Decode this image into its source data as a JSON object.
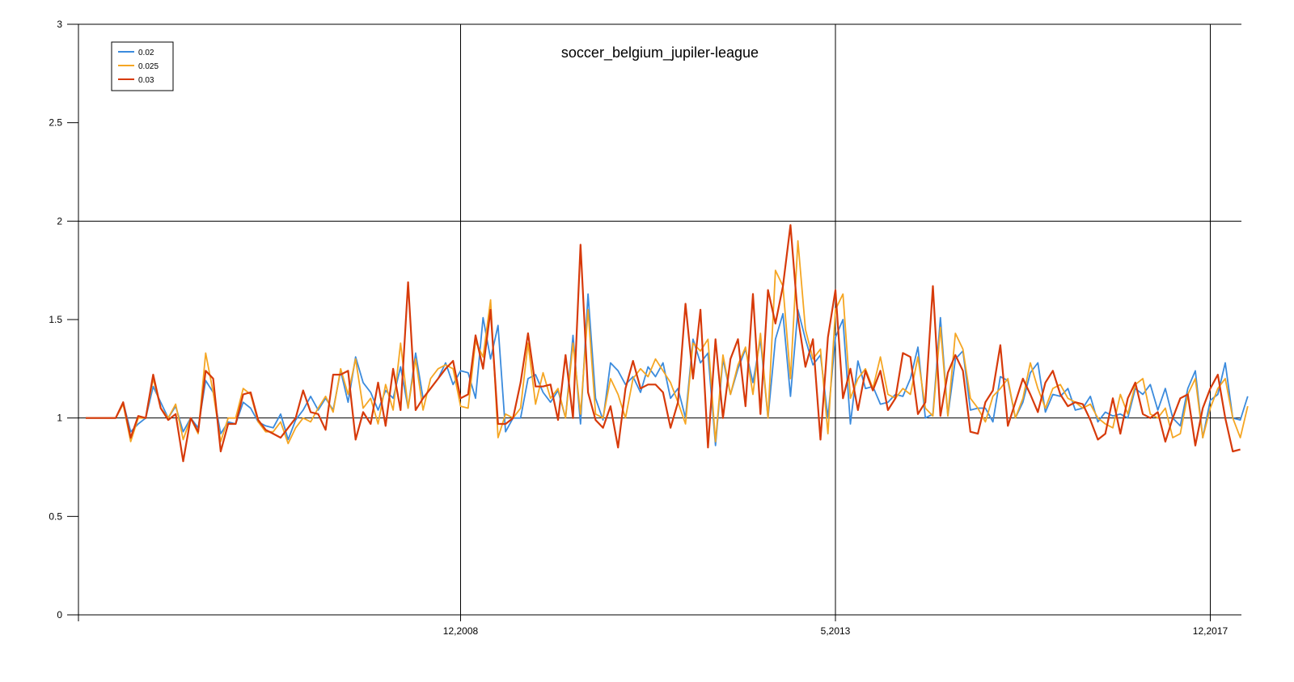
{
  "chart_data": {
    "type": "line",
    "title": "soccer_belgium_jupiler-league",
    "xlabel": "",
    "ylabel": "",
    "ylim": [
      0,
      3
    ],
    "xlim": [
      0,
      160
    ],
    "yticks": [
      0,
      0.5,
      1,
      1.5,
      2,
      2.5,
      3
    ],
    "ytick_labels": [
      "0",
      "0.5",
      "1",
      "1.5",
      "2",
      "2.5",
      "3"
    ],
    "xticks": [
      {
        "x": 50,
        "label": "12,2008"
      },
      {
        "x": 100,
        "label": "5,2013"
      },
      {
        "x": 150,
        "label": "12,2017"
      }
    ],
    "grid": {
      "horizontal": [
        1,
        2,
        3
      ],
      "vertical": [
        50,
        100,
        150
      ]
    },
    "legend_position": "top-left",
    "series": [
      {
        "name": "0.02",
        "color": "#3b8bdd",
        "values": [
          1.0,
          1.0,
          1.0,
          1.0,
          1.0,
          1.08,
          0.93,
          0.97,
          1.0,
          1.16,
          1.08,
          1.0,
          1.06,
          0.93,
          1.0,
          0.95,
          1.19,
          1.13,
          0.92,
          0.98,
          0.97,
          1.08,
          1.05,
          0.98,
          0.96,
          0.95,
          1.02,
          0.89,
          0.99,
          1.04,
          1.11,
          1.04,
          1.1,
          1.04,
          1.24,
          1.08,
          1.31,
          1.18,
          1.13,
          1.04,
          1.14,
          1.1,
          1.26,
          1.05,
          1.33,
          1.1,
          1.15,
          1.2,
          1.28,
          1.17,
          1.24,
          1.23,
          1.1,
          1.51,
          1.3,
          1.47,
          0.93,
          1.0,
          1.0,
          1.2,
          1.22,
          1.13,
          1.08,
          1.14,
          1.0,
          1.42,
          0.97,
          1.63,
          1.1,
          0.99,
          1.28,
          1.24,
          1.17,
          1.21,
          1.13,
          1.26,
          1.21,
          1.28,
          1.1,
          1.15,
          1.0,
          1.4,
          1.28,
          1.33,
          0.86,
          1.3,
          1.12,
          1.25,
          1.35,
          1.18,
          1.4,
          1.0,
          1.4,
          1.53,
          1.11,
          1.55,
          1.4,
          1.27,
          1.32,
          1.0,
          1.41,
          1.5,
          0.97,
          1.29,
          1.15,
          1.16,
          1.07,
          1.08,
          1.12,
          1.11,
          1.2,
          1.36,
          1.0,
          1.02,
          1.51,
          1.01,
          1.3,
          1.34,
          1.04,
          1.05,
          1.05,
          0.98,
          1.21,
          1.19,
          1.0,
          1.08,
          1.23,
          1.28,
          1.03,
          1.12,
          1.11,
          1.15,
          1.04,
          1.05,
          1.11,
          0.98,
          1.03,
          1.01,
          1.02,
          1.0,
          1.15,
          1.12,
          1.17,
          1.04,
          1.15,
          1.0,
          0.96,
          1.15,
          1.24,
          0.9,
          1.09,
          1.12,
          1.28,
          1.0,
          0.99,
          1.11
        ]
      },
      {
        "name": "0.025",
        "color": "#f5a623",
        "values": [
          1.0,
          1.0,
          1.0,
          1.0,
          1.0,
          1.07,
          0.88,
          1.0,
          1.0,
          1.2,
          1.05,
          1.0,
          1.07,
          0.89,
          1.0,
          0.92,
          1.33,
          1.13,
          0.88,
          1.0,
          1.0,
          1.15,
          1.12,
          0.98,
          0.93,
          0.93,
          0.98,
          0.87,
          0.95,
          1.0,
          0.98,
          1.05,
          1.11,
          1.03,
          1.25,
          1.12,
          1.3,
          1.05,
          1.1,
          0.97,
          1.17,
          1.04,
          1.38,
          1.05,
          1.3,
          1.04,
          1.2,
          1.25,
          1.27,
          1.25,
          1.06,
          1.05,
          1.39,
          1.31,
          1.6,
          0.9,
          1.02,
          1.0,
          1.05,
          1.38,
          1.07,
          1.23,
          1.1,
          1.15,
          1.0,
          1.38,
          1.02,
          1.55,
          1.02,
          1.0,
          1.2,
          1.12,
          1.0,
          1.2,
          1.25,
          1.21,
          1.3,
          1.24,
          1.18,
          1.08,
          0.97,
          1.38,
          1.34,
          1.4,
          0.88,
          1.32,
          1.12,
          1.27,
          1.36,
          1.12,
          1.43,
          1.0,
          1.75,
          1.67,
          1.2,
          1.9,
          1.45,
          1.3,
          1.35,
          0.92,
          1.55,
          1.63,
          1.1,
          1.2,
          1.25,
          1.15,
          1.31,
          1.12,
          1.1,
          1.15,
          1.12,
          1.31,
          1.05,
          1.01,
          1.46,
          1.01,
          1.43,
          1.35,
          1.1,
          1.05,
          0.98,
          1.11,
          1.15,
          1.2,
          1.0,
          1.1,
          1.28,
          1.15,
          1.05,
          1.15,
          1.17,
          1.1,
          1.08,
          1.05,
          1.07,
          1.0,
          0.97,
          0.95,
          1.12,
          1.02,
          1.17,
          1.2,
          1.02,
          1.0,
          1.05,
          0.9,
          0.92,
          1.12,
          1.2,
          0.9,
          1.05,
          1.15,
          1.2,
          1.0,
          0.9,
          1.06
        ]
      },
      {
        "name": "0.03",
        "color": "#d73a0a",
        "values": [
          1.0,
          1.0,
          1.0,
          1.0,
          1.0,
          1.08,
          0.9,
          1.01,
          1.0,
          1.22,
          1.05,
          0.99,
          1.02,
          0.78,
          1.0,
          0.93,
          1.24,
          1.2,
          0.83,
          0.97,
          0.97,
          1.12,
          1.13,
          0.99,
          0.94,
          0.92,
          0.9,
          0.95,
          1.0,
          1.14,
          1.03,
          1.02,
          0.94,
          1.22,
          1.22,
          1.24,
          0.89,
          1.03,
          0.97,
          1.18,
          0.96,
          1.25,
          1.04,
          1.69,
          1.04,
          1.1,
          1.15,
          1.2,
          1.25,
          1.29,
          1.1,
          1.12,
          1.42,
          1.25,
          1.55,
          0.97,
          0.97,
          1.0,
          1.18,
          1.43,
          1.16,
          1.16,
          1.17,
          0.99,
          1.32,
          1.0,
          1.88,
          1.13,
          0.99,
          0.95,
          1.06,
          0.85,
          1.15,
          1.29,
          1.15,
          1.17,
          1.17,
          1.13,
          0.95,
          1.08,
          1.58,
          1.2,
          1.55,
          0.85,
          1.4,
          1.0,
          1.3,
          1.4,
          1.06,
          1.63,
          1.02,
          1.65,
          1.48,
          1.67,
          1.98,
          1.51,
          1.26,
          1.4,
          0.89,
          1.41,
          1.65,
          1.1,
          1.25,
          1.04,
          1.24,
          1.14,
          1.24,
          1.04,
          1.1,
          1.33,
          1.31,
          1.02,
          1.08,
          1.67,
          1.01,
          1.23,
          1.32,
          1.24,
          0.93,
          0.92,
          1.08,
          1.14,
          1.37,
          0.96,
          1.08,
          1.2,
          1.12,
          1.03,
          1.18,
          1.24,
          1.12,
          1.06,
          1.08,
          1.07,
          0.99,
          0.89,
          0.92,
          1.1,
          0.92,
          1.1,
          1.18,
          1.02,
          1.0,
          1.03,
          0.88,
          1.0,
          1.1,
          1.12,
          0.86,
          1.05,
          1.15,
          1.22,
          1.0,
          0.83,
          0.84
        ]
      }
    ]
  }
}
